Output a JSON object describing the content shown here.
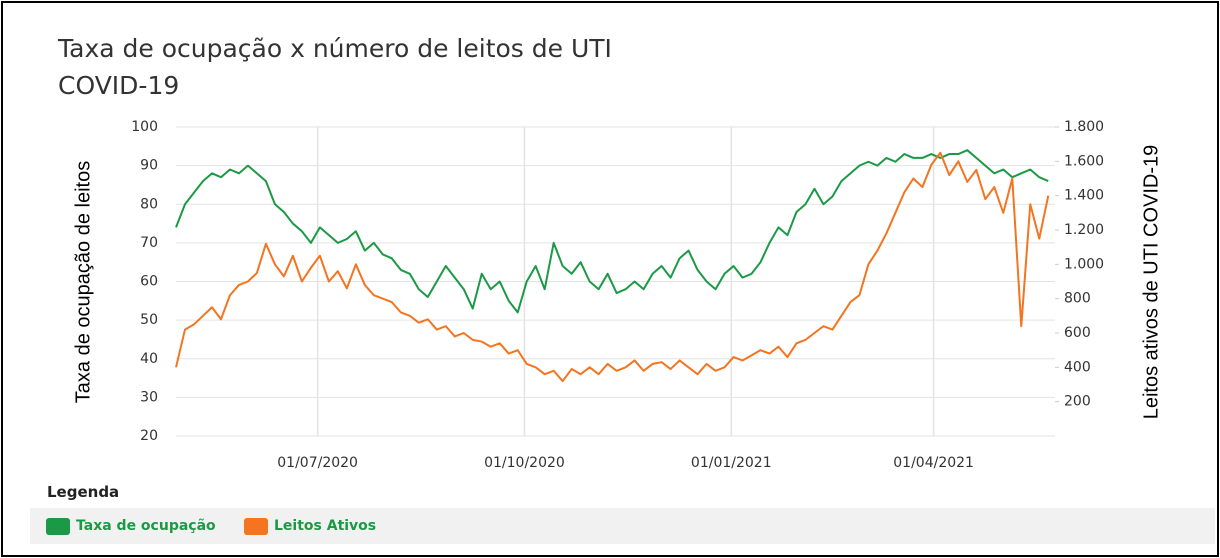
{
  "chart_data": {
    "type": "line",
    "title": "Taxa de ocupação x número de leitos de UTI COVID-19",
    "y_label": "Taxa de ocupação de leitos",
    "y2_label": "Leitos ativos de UTI COVID-19",
    "legend_title": "Legenda",
    "x": [
      "29/04/2020",
      "03/05/2020",
      "07/05/2020",
      "11/05/2020",
      "15/05/2020",
      "19/05/2020",
      "23/05/2020",
      "27/05/2020",
      "31/05/2020",
      "04/06/2020",
      "08/06/2020",
      "12/06/2020",
      "16/06/2020",
      "20/06/2020",
      "24/06/2020",
      "28/06/2020",
      "02/07/2020",
      "06/07/2020",
      "10/07/2020",
      "14/07/2020",
      "18/07/2020",
      "22/07/2020",
      "26/07/2020",
      "30/07/2020",
      "03/08/2020",
      "07/08/2020",
      "11/08/2020",
      "15/08/2020",
      "19/08/2020",
      "23/08/2020",
      "27/08/2020",
      "31/08/2020",
      "04/09/2020",
      "08/09/2020",
      "12/09/2020",
      "16/09/2020",
      "20/09/2020",
      "24/09/2020",
      "28/09/2020",
      "02/10/2020",
      "06/10/2020",
      "10/10/2020",
      "14/10/2020",
      "18/10/2020",
      "22/10/2020",
      "26/10/2020",
      "30/10/2020",
      "03/11/2020",
      "07/11/2020",
      "11/11/2020",
      "15/11/2020",
      "19/11/2020",
      "23/11/2020",
      "27/11/2020",
      "01/12/2020",
      "05/12/2020",
      "09/12/2020",
      "13/12/2020",
      "17/12/2020",
      "21/12/2020",
      "25/12/2020",
      "29/12/2020",
      "02/01/2021",
      "06/01/2021",
      "10/01/2021",
      "14/01/2021",
      "18/01/2021",
      "22/01/2021",
      "26/01/2021",
      "30/01/2021",
      "03/02/2021",
      "07/02/2021",
      "11/02/2021",
      "15/02/2021",
      "19/02/2021",
      "23/02/2021",
      "27/02/2021",
      "03/03/2021",
      "07/03/2021",
      "11/03/2021",
      "15/03/2021",
      "19/03/2021",
      "23/03/2021",
      "27/03/2021",
      "31/03/2021",
      "04/04/2021",
      "08/04/2021",
      "12/04/2021",
      "16/04/2021",
      "20/04/2021",
      "24/04/2021",
      "28/04/2021",
      "02/05/2021",
      "06/05/2021",
      "10/05/2021",
      "14/05/2021",
      "18/05/2021",
      "22/05/2021"
    ],
    "xlim": [
      "29/04/2020",
      "25/05/2021"
    ],
    "xticks": [
      "01/07/2020",
      "01/10/2020",
      "01/01/2021",
      "01/04/2021"
    ],
    "ylim": [
      20,
      100
    ],
    "yticks": [
      20,
      30,
      40,
      50,
      60,
      70,
      80,
      90,
      100
    ],
    "y2lim": [
      0,
      1800
    ],
    "y2ticks": [
      200,
      400,
      600,
      800,
      {
        "value": 1000,
        "label": "1.000"
      },
      {
        "value": 1200,
        "label": "1.200"
      },
      {
        "value": 1400,
        "label": "1.400"
      },
      {
        "value": 1600,
        "label": "1.600"
      },
      {
        "value": 1800,
        "label": "1.800"
      }
    ],
    "grid": true,
    "series": [
      {
        "name": "Taxa de ocupação",
        "color": "#1b9a45",
        "values": [
          74,
          80,
          83,
          86,
          88,
          87,
          89,
          88,
          90,
          88,
          86,
          80,
          78,
          75,
          73,
          70,
          74,
          72,
          70,
          71,
          73,
          68,
          70,
          67,
          66,
          63,
          62,
          58,
          56,
          60,
          64,
          61,
          58,
          53,
          62,
          58,
          60,
          55,
          52,
          60,
          64,
          58,
          70,
          64,
          62,
          65,
          60,
          58,
          62,
          57,
          58,
          60,
          58,
          62,
          64,
          61,
          66,
          68,
          63,
          60,
          58,
          62,
          64,
          61,
          62,
          65,
          70,
          74,
          72,
          78,
          80,
          84,
          80,
          82,
          86,
          88,
          90,
          91,
          90,
          92,
          91,
          93,
          92,
          92,
          93,
          92,
          93,
          93,
          94,
          92,
          90,
          88,
          89,
          87,
          88,
          89,
          87,
          86
        ]
      },
      {
        "name": "Leitos Ativos",
        "color": "#f47420",
        "axis": "y2",
        "values": [
          400,
          620,
          650,
          700,
          750,
          680,
          820,
          880,
          900,
          950,
          1120,
          1000,
          930,
          1050,
          900,
          980,
          1050,
          900,
          960,
          860,
          1000,
          880,
          820,
          800,
          780,
          720,
          700,
          660,
          680,
          620,
          640,
          580,
          600,
          560,
          550,
          520,
          540,
          480,
          500,
          420,
          400,
          360,
          380,
          320,
          390,
          360,
          400,
          360,
          420,
          380,
          400,
          440,
          380,
          420,
          430,
          390,
          440,
          400,
          360,
          420,
          380,
          400,
          460,
          440,
          470,
          500,
          480,
          520,
          460,
          540,
          560,
          600,
          640,
          620,
          700,
          780,
          820,
          1000,
          1080,
          1180,
          1300,
          1420,
          1500,
          1450,
          1580,
          1650,
          1520,
          1600,
          1480,
          1550,
          1380,
          1450,
          1300,
          1500,
          640,
          1350,
          1150,
          1400
        ]
      }
    ]
  }
}
